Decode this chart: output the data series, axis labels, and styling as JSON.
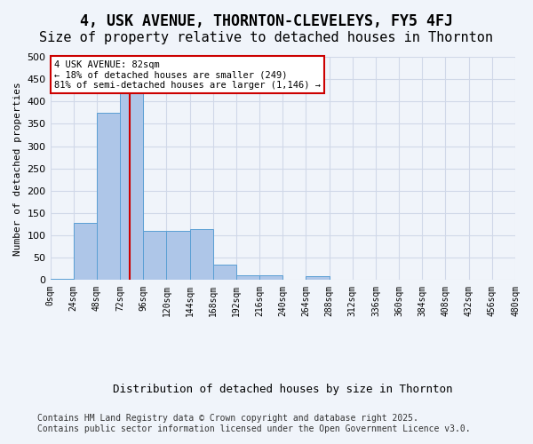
{
  "title": "4, USK AVENUE, THORNTON-CLEVELEYS, FY5 4FJ",
  "subtitle": "Size of property relative to detached houses in Thornton",
  "xlabel": "Distribution of detached houses by size in Thornton",
  "ylabel": "Number of detached properties",
  "bar_color": "#aec6e8",
  "bar_edge_color": "#5a9fd4",
  "background_color": "#f0f4fa",
  "bin_edges": [
    0,
    24,
    48,
    72,
    96,
    120,
    144,
    168,
    192,
    216,
    240,
    264,
    288,
    312,
    336,
    360,
    384,
    408,
    432,
    456,
    480
  ],
  "bar_heights": [
    2,
    128,
    375,
    420,
    110,
    110,
    115,
    35,
    10,
    10,
    0,
    8,
    0,
    0,
    0,
    0,
    0,
    0,
    0,
    0
  ],
  "property_size": 82,
  "annotation_title": "4 USK AVENUE: 82sqm",
  "annotation_line1": "← 18% of detached houses are smaller (249)",
  "annotation_line2": "81% of semi-detached houses are larger (1,146) →",
  "vline_color": "#cc0000",
  "annotation_box_color": "#ffffff",
  "annotation_box_edge_color": "#cc0000",
  "footer_line1": "Contains HM Land Registry data © Crown copyright and database right 2025.",
  "footer_line2": "Contains public sector information licensed under the Open Government Licence v3.0.",
  "ylim": [
    0,
    500
  ],
  "xlim": [
    0,
    480
  ],
  "grid_color": "#d0d8e8",
  "title_fontsize": 12,
  "subtitle_fontsize": 11,
  "tick_label_fontsize": 7,
  "footer_fontsize": 7
}
